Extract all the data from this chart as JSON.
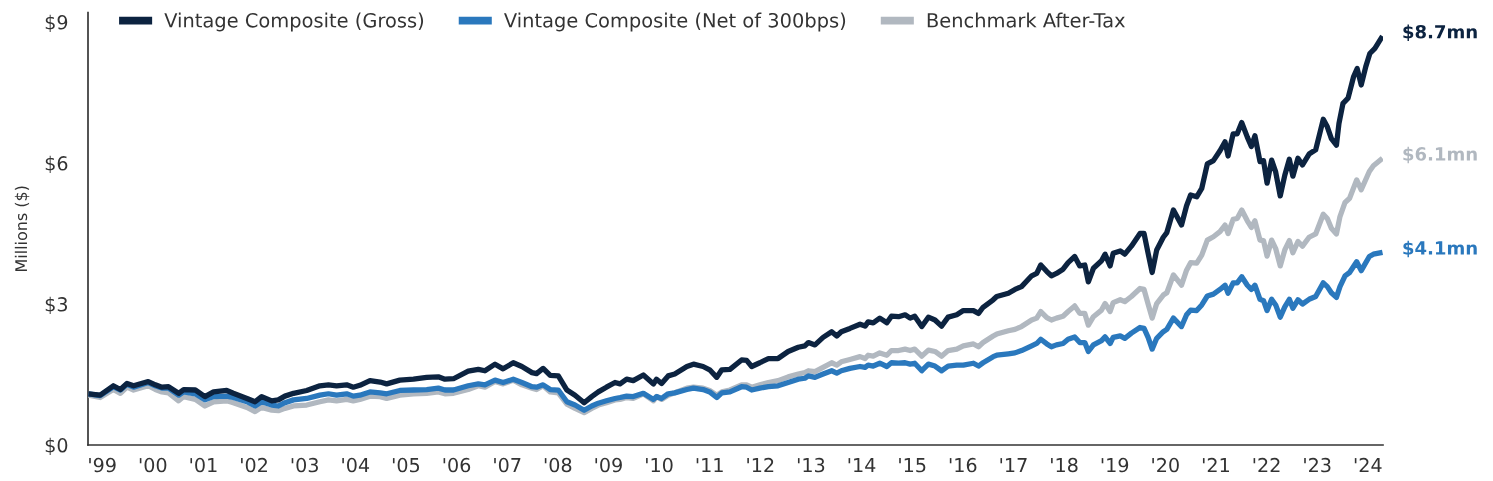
{
  "chart_data": {
    "type": "line",
    "ylabel": "Millions ($)",
    "legend": "top left",
    "line_style": "solid",
    "xlim": [
      1998.72,
      2024.3
    ],
    "ylim": [
      0,
      9.2
    ],
    "xticks": [
      {
        "value": 1999,
        "label": "'99"
      },
      {
        "value": 2000,
        "label": "'00"
      },
      {
        "value": 2001,
        "label": "'01"
      },
      {
        "value": 2002,
        "label": "'02"
      },
      {
        "value": 2003,
        "label": "'03"
      },
      {
        "value": 2004,
        "label": "'04"
      },
      {
        "value": 2005,
        "label": "'05"
      },
      {
        "value": 2006,
        "label": "'06"
      },
      {
        "value": 2007,
        "label": "'07"
      },
      {
        "value": 2008,
        "label": "'08"
      },
      {
        "value": 2009,
        "label": "'09"
      },
      {
        "value": 2010,
        "label": "'10"
      },
      {
        "value": 2011,
        "label": "'11"
      },
      {
        "value": 2012,
        "label": "'12"
      },
      {
        "value": 2013,
        "label": "'13"
      },
      {
        "value": 2014,
        "label": "'14"
      },
      {
        "value": 2015,
        "label": "'15"
      },
      {
        "value": 2016,
        "label": "'16"
      },
      {
        "value": 2017,
        "label": "'17"
      },
      {
        "value": 2018,
        "label": "'18"
      },
      {
        "value": 2019,
        "label": "'19"
      },
      {
        "value": 2020,
        "label": "'20"
      },
      {
        "value": 2021,
        "label": "'21"
      },
      {
        "value": 2022,
        "label": "'22"
      },
      {
        "value": 2023,
        "label": "'23"
      },
      {
        "value": 2024,
        "label": "'24"
      }
    ],
    "yticks": [
      {
        "value": 0,
        "label": "$0"
      },
      {
        "value": 3,
        "label": "$3"
      },
      {
        "value": 6,
        "label": "$6"
      },
      {
        "value": 9,
        "label": "$9"
      }
    ],
    "annotations": [
      "$8.7mn",
      "$6.1mn",
      "$4.1mn"
    ],
    "x": [
      1998.73,
      1998.96,
      1999.22,
      1999.36,
      1999.49,
      1999.62,
      1999.91,
      2000.05,
      2000.18,
      2000.31,
      2000.51,
      2000.61,
      2000.84,
      2001.03,
      2001.2,
      2001.46,
      2001.59,
      2001.86,
      2002.02,
      2002.15,
      2002.35,
      2002.48,
      2002.61,
      2002.78,
      2003.04,
      2003.3,
      2003.47,
      2003.63,
      2003.83,
      2003.96,
      2004.09,
      2004.29,
      2004.49,
      2004.62,
      2004.88,
      2005.15,
      2005.41,
      2005.64,
      2005.77,
      2005.94,
      2006.23,
      2006.43,
      2006.56,
      2006.76,
      2006.92,
      2007.12,
      2007.29,
      2007.49,
      2007.58,
      2007.71,
      2007.85,
      2008.01,
      2008.18,
      2008.34,
      2008.52,
      2008.67,
      2008.8,
      2008.96,
      2009.13,
      2009.23,
      2009.36,
      2009.49,
      2009.69,
      2009.89,
      2009.95,
      2010.05,
      2010.18,
      2010.31,
      2010.55,
      2010.68,
      2010.87,
      2011.0,
      2011.14,
      2011.24,
      2011.4,
      2011.63,
      2011.73,
      2011.83,
      2011.99,
      2012.16,
      2012.35,
      2012.55,
      2012.75,
      2012.88,
      2012.95,
      2013.08,
      2013.24,
      2013.41,
      2013.51,
      2013.6,
      2013.77,
      2013.97,
      2014.07,
      2014.13,
      2014.23,
      2014.36,
      2014.5,
      2014.59,
      2014.73,
      2014.86,
      2014.96,
      2015.05,
      2015.19,
      2015.32,
      2015.45,
      2015.58,
      2015.71,
      2015.88,
      2016.01,
      2016.21,
      2016.31,
      2016.4,
      2016.6,
      2016.67,
      2016.9,
      2017.03,
      2017.16,
      2017.36,
      2017.46,
      2017.54,
      2017.66,
      2017.75,
      2017.85,
      2017.98,
      2018.08,
      2018.21,
      2018.31,
      2018.41,
      2018.48,
      2018.58,
      2018.74,
      2018.81,
      2018.91,
      2018.97,
      2019.11,
      2019.2,
      2019.33,
      2019.5,
      2019.58,
      2019.66,
      2019.74,
      2019.83,
      2019.96,
      2020.03,
      2020.16,
      2020.32,
      2020.42,
      2020.5,
      2020.62,
      2020.72,
      2020.83,
      2020.95,
      2021.08,
      2021.18,
      2021.24,
      2021.34,
      2021.42,
      2021.51,
      2021.62,
      2021.7,
      2021.77,
      2021.87,
      2021.94,
      2022.01,
      2022.1,
      2022.18,
      2022.27,
      2022.36,
      2022.45,
      2022.52,
      2022.62,
      2022.71,
      2022.84,
      2022.97,
      2023.12,
      2023.2,
      2023.28,
      2023.38,
      2023.45,
      2023.55,
      2023.64,
      2023.78,
      2023.87,
      2024.03,
      2024.11,
      2024.29
    ],
    "series": [
      {
        "name": "Vintage Composite (Gross)",
        "color": "#0c2340",
        "x": [
          1998.73,
          1998.96,
          1999.22,
          1999.36,
          1999.49,
          1999.62,
          1999.91,
          2000.05,
          2000.18,
          2000.31,
          2000.51,
          2000.61,
          2000.84,
          2001.03,
          2001.2,
          2001.46,
          2001.59,
          2001.86,
          2002.02,
          2002.15,
          2002.35,
          2002.48,
          2002.61,
          2002.78,
          2003.04,
          2003.3,
          2003.47,
          2003.63,
          2003.83,
          2003.96,
          2004.09,
          2004.29,
          2004.49,
          2004.62,
          2004.88,
          2005.15,
          2005.41,
          2005.64,
          2005.77,
          2005.94,
          2006.23,
          2006.43,
          2006.56,
          2006.76,
          2006.92,
          2007.12,
          2007.29,
          2007.49,
          2007.58,
          2007.71,
          2007.85,
          2008.01,
          2008.18,
          2008.34,
          2008.52,
          2008.67,
          2008.8,
          2008.96,
          2009.13,
          2009.23,
          2009.36,
          2009.49,
          2009.69,
          2009.89,
          2009.95,
          2010.05,
          2010.18,
          2010.31,
          2010.55,
          2010.68,
          2010.87,
          2011.0,
          2011.14,
          2011.24,
          2011.4,
          2011.63,
          2011.73,
          2011.83,
          2011.99,
          2012.16,
          2012.35,
          2012.55,
          2012.75,
          2012.88,
          2012.95,
          2013.08,
          2013.24,
          2013.41,
          2013.51,
          2013.6,
          2013.77,
          2013.97,
          2014.07,
          2014.13,
          2014.23,
          2014.36,
          2014.5,
          2014.59,
          2014.73,
          2014.86,
          2014.96,
          2015.05,
          2015.19,
          2015.32,
          2015.45,
          2015.58,
          2015.71,
          2015.88,
          2016.01,
          2016.21,
          2016.31,
          2016.4,
          2016.6,
          2016.67,
          2016.9,
          2017.03,
          2017.16,
          2017.36,
          2017.46,
          2017.54,
          2017.66,
          2017.75,
          2017.85,
          2017.98,
          2018.08,
          2018.21,
          2018.31,
          2018.41,
          2018.48,
          2018.58,
          2018.74,
          2018.81,
          2018.91,
          2018.97,
          2019.11,
          2019.2,
          2019.33,
          2019.5,
          2019.58,
          2019.66,
          2019.74,
          2019.83,
          2019.96,
          2020.03,
          2020.16,
          2020.32,
          2020.42,
          2020.5,
          2020.62,
          2020.72,
          2020.83,
          2020.95,
          2021.08,
          2021.18,
          2021.24,
          2021.34,
          2021.42,
          2021.51,
          2021.62,
          2021.7,
          2021.77,
          2021.87,
          2021.94,
          2022.01,
          2022.1,
          2022.18,
          2022.27,
          2022.36,
          2022.45,
          2022.52,
          2022.62,
          2022.71,
          2022.84,
          2022.97,
          2023.12,
          2023.2,
          2023.28,
          2023.38,
          2023.43,
          2023.51,
          2023.61,
          2023.72,
          2023.79,
          2023.87,
          2023.96,
          2024.04,
          2024.14,
          2024.29
        ],
        "values": [
          1.09,
          1.06,
          1.26,
          1.18,
          1.31,
          1.26,
          1.35,
          1.28,
          1.23,
          1.24,
          1.1,
          1.18,
          1.17,
          1.03,
          1.13,
          1.16,
          1.1,
          0.99,
          0.92,
          1.03,
          0.94,
          0.96,
          1.04,
          1.1,
          1.16,
          1.26,
          1.28,
          1.26,
          1.28,
          1.23,
          1.27,
          1.37,
          1.34,
          1.3,
          1.38,
          1.4,
          1.44,
          1.45,
          1.4,
          1.41,
          1.57,
          1.61,
          1.58,
          1.72,
          1.62,
          1.75,
          1.67,
          1.54,
          1.52,
          1.63,
          1.48,
          1.47,
          1.17,
          1.06,
          0.9,
          1.03,
          1.13,
          1.23,
          1.33,
          1.3,
          1.4,
          1.37,
          1.49,
          1.3,
          1.4,
          1.31,
          1.47,
          1.51,
          1.67,
          1.72,
          1.67,
          1.6,
          1.44,
          1.6,
          1.61,
          1.81,
          1.8,
          1.67,
          1.75,
          1.84,
          1.84,
          1.99,
          2.08,
          2.11,
          2.18,
          2.13,
          2.29,
          2.41,
          2.32,
          2.41,
          2.48,
          2.57,
          2.53,
          2.62,
          2.6,
          2.7,
          2.6,
          2.74,
          2.73,
          2.77,
          2.7,
          2.74,
          2.52,
          2.72,
          2.66,
          2.53,
          2.72,
          2.77,
          2.86,
          2.86,
          2.8,
          2.93,
          3.09,
          3.16,
          3.23,
          3.31,
          3.37,
          3.6,
          3.65,
          3.83,
          3.69,
          3.6,
          3.65,
          3.74,
          3.88,
          4.01,
          3.81,
          3.83,
          3.47,
          3.76,
          3.92,
          4.06,
          3.81,
          4.08,
          4.13,
          4.06,
          4.23,
          4.5,
          4.5,
          4.08,
          3.67,
          4.15,
          4.42,
          4.52,
          5.0,
          4.68,
          5.09,
          5.32,
          5.28,
          5.46,
          5.98,
          6.05,
          6.26,
          6.45,
          6.15,
          6.62,
          6.62,
          6.86,
          6.55,
          6.35,
          6.58,
          6.03,
          6.05,
          5.57,
          6.06,
          5.81,
          5.3,
          5.74,
          6.08,
          5.72,
          6.1,
          5.96,
          6.19,
          6.28,
          6.93,
          6.77,
          6.52,
          6.38,
          6.84,
          7.27,
          7.38,
          7.84,
          8.01,
          7.66,
          8.05,
          8.33,
          8.44,
          8.7
        ]
      },
      {
        "name": "Vintage Composite (Net of 300bps)",
        "color": "#2a78bd",
        "values": [
          1.09,
          1.05,
          1.24,
          1.17,
          1.29,
          1.23,
          1.33,
          1.26,
          1.21,
          1.21,
          1.06,
          1.13,
          1.09,
          0.96,
          1.03,
          1.04,
          1.01,
          0.92,
          0.83,
          0.92,
          0.85,
          0.83,
          0.9,
          0.96,
          0.99,
          1.06,
          1.09,
          1.06,
          1.09,
          1.04,
          1.06,
          1.13,
          1.11,
          1.09,
          1.16,
          1.17,
          1.18,
          1.21,
          1.17,
          1.17,
          1.26,
          1.3,
          1.28,
          1.38,
          1.33,
          1.4,
          1.33,
          1.24,
          1.23,
          1.28,
          1.18,
          1.17,
          0.92,
          0.85,
          0.74,
          0.83,
          0.89,
          0.94,
          0.99,
          1.01,
          1.04,
          1.03,
          1.1,
          0.97,
          1.03,
          0.99,
          1.09,
          1.11,
          1.18,
          1.21,
          1.18,
          1.13,
          1.01,
          1.11,
          1.13,
          1.24,
          1.23,
          1.17,
          1.21,
          1.24,
          1.26,
          1.33,
          1.4,
          1.42,
          1.47,
          1.44,
          1.51,
          1.58,
          1.53,
          1.58,
          1.63,
          1.67,
          1.65,
          1.7,
          1.68,
          1.74,
          1.67,
          1.75,
          1.74,
          1.75,
          1.72,
          1.74,
          1.58,
          1.72,
          1.68,
          1.58,
          1.68,
          1.7,
          1.7,
          1.74,
          1.68,
          1.75,
          1.88,
          1.91,
          1.94,
          1.96,
          2.01,
          2.11,
          2.16,
          2.25,
          2.15,
          2.09,
          2.13,
          2.16,
          2.25,
          2.3,
          2.18,
          2.18,
          1.99,
          2.13,
          2.22,
          2.3,
          2.16,
          2.29,
          2.32,
          2.27,
          2.38,
          2.5,
          2.48,
          2.29,
          2.04,
          2.27,
          2.41,
          2.46,
          2.7,
          2.52,
          2.77,
          2.87,
          2.86,
          2.98,
          3.17,
          3.21,
          3.31,
          3.4,
          3.23,
          3.45,
          3.45,
          3.58,
          3.4,
          3.31,
          3.4,
          3.1,
          3.07,
          2.86,
          3.1,
          2.98,
          2.72,
          2.94,
          3.1,
          2.91,
          3.09,
          3.0,
          3.1,
          3.16,
          3.45,
          3.37,
          3.24,
          3.14,
          3.37,
          3.6,
          3.67,
          3.9,
          3.71,
          4.01,
          4.06,
          4.1
        ]
      },
      {
        "name": "Benchmark After-Tax",
        "color": "#b1b8c0",
        "values": [
          1.06,
          1.01,
          1.18,
          1.1,
          1.23,
          1.17,
          1.26,
          1.18,
          1.13,
          1.11,
          0.94,
          1.03,
          0.97,
          0.83,
          0.92,
          0.94,
          0.9,
          0.8,
          0.71,
          0.8,
          0.74,
          0.73,
          0.78,
          0.83,
          0.85,
          0.92,
          0.96,
          0.94,
          0.97,
          0.94,
          0.97,
          1.04,
          1.03,
          0.99,
          1.06,
          1.09,
          1.1,
          1.13,
          1.09,
          1.1,
          1.18,
          1.26,
          1.23,
          1.35,
          1.3,
          1.38,
          1.28,
          1.21,
          1.18,
          1.26,
          1.13,
          1.11,
          0.87,
          0.78,
          0.69,
          0.78,
          0.85,
          0.9,
          0.96,
          0.97,
          1.01,
          0.99,
          1.09,
          0.94,
          1.03,
          0.97,
          1.06,
          1.11,
          1.21,
          1.23,
          1.21,
          1.16,
          1.06,
          1.13,
          1.17,
          1.28,
          1.28,
          1.23,
          1.28,
          1.33,
          1.37,
          1.45,
          1.51,
          1.54,
          1.58,
          1.56,
          1.65,
          1.75,
          1.7,
          1.77,
          1.82,
          1.88,
          1.84,
          1.91,
          1.89,
          1.96,
          1.91,
          2.01,
          2.01,
          2.04,
          2.01,
          2.04,
          1.89,
          2.02,
          1.99,
          1.89,
          2.01,
          2.04,
          2.11,
          2.15,
          2.09,
          2.18,
          2.32,
          2.36,
          2.43,
          2.46,
          2.52,
          2.66,
          2.7,
          2.84,
          2.71,
          2.66,
          2.7,
          2.74,
          2.84,
          2.96,
          2.8,
          2.8,
          2.55,
          2.73,
          2.87,
          3.01,
          2.84,
          3.03,
          3.09,
          3.05,
          3.16,
          3.33,
          3.31,
          3.0,
          2.7,
          3.01,
          3.19,
          3.24,
          3.62,
          3.4,
          3.72,
          3.88,
          3.87,
          4.04,
          4.36,
          4.43,
          4.54,
          4.68,
          4.5,
          4.8,
          4.82,
          5.0,
          4.77,
          4.63,
          4.77,
          4.36,
          4.35,
          4.02,
          4.36,
          4.18,
          3.81,
          4.15,
          4.35,
          4.09,
          4.33,
          4.23,
          4.42,
          4.49,
          4.91,
          4.82,
          4.61,
          4.49,
          4.86,
          5.16,
          5.25,
          5.64,
          5.43,
          5.82,
          5.94,
          6.1
        ]
      }
    ]
  }
}
